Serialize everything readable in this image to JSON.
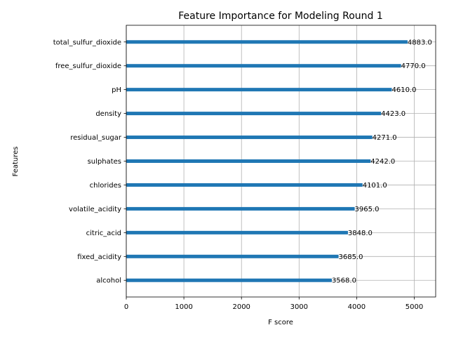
{
  "chart_data": {
    "type": "bar",
    "orientation": "horizontal",
    "title": "Feature Importance for Modeling Round 1",
    "xlabel": "F score",
    "ylabel": "Features",
    "categories": [
      "alcohol",
      "fixed_acidity",
      "citric_acid",
      "volatile_acidity",
      "chlorides",
      "sulphates",
      "residual_sugar",
      "density",
      "pH",
      "free_sulfur_dioxide",
      "total_sulfur_dioxide"
    ],
    "values": [
      3568,
      3685,
      3848,
      3965,
      4101,
      4242,
      4271,
      4423,
      4610,
      4770,
      4883
    ],
    "value_labels": [
      "3568.0",
      "3685.0",
      "3848.0",
      "3965.0",
      "4101.0",
      "4242.0",
      "4271.0",
      "4423.0",
      "4610.0",
      "4770.0",
      "4883.0"
    ],
    "xlim": [
      0,
      5371.3
    ],
    "xticks": [
      0,
      1000,
      2000,
      3000,
      4000,
      5000
    ],
    "xtick_labels": [
      "0",
      "1000",
      "2000",
      "3000",
      "4000",
      "5000"
    ],
    "grid": true,
    "legend": "none",
    "bar_color": "#1f77b4",
    "grid_color": "#b0b0b0"
  }
}
